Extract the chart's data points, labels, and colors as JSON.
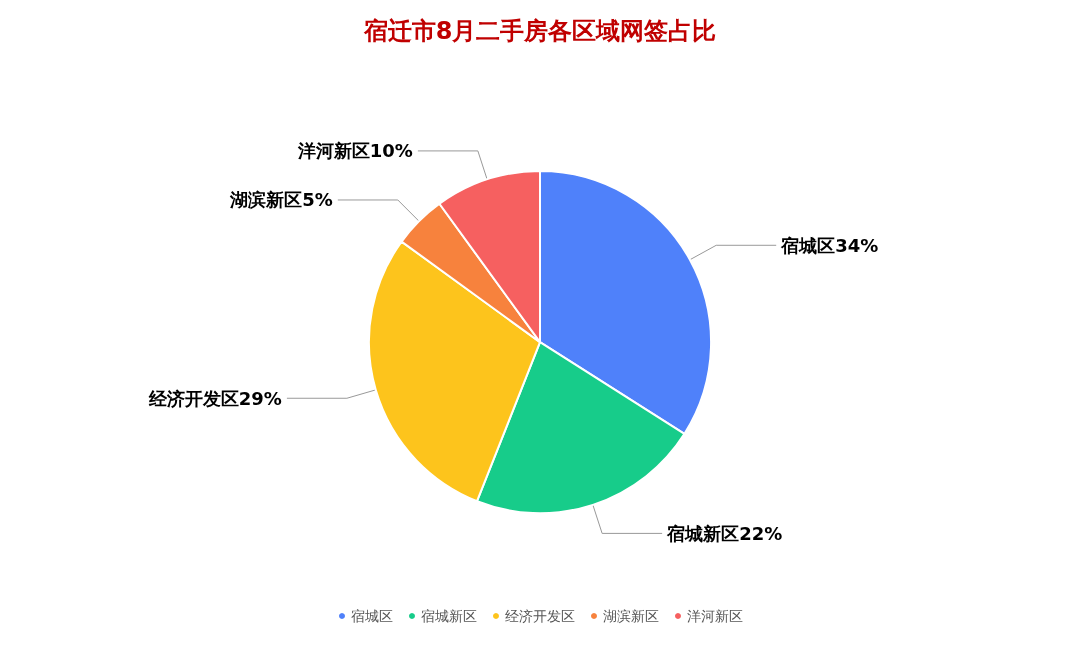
{
  "chart_data": {
    "type": "pie",
    "title": "宿迁市8月二手房各区域网签占比",
    "categories": [
      "宿城区",
      "宿城新区",
      "经济开发区",
      "湖滨新区",
      "洋河新区"
    ],
    "values": [
      34,
      22,
      29,
      5,
      10
    ],
    "colors": [
      "#4f81fa",
      "#17cc8a",
      "#fdc41c",
      "#f7823d",
      "#f66060"
    ],
    "value_labels": [
      "宿城区34%",
      "宿城新区22%",
      "经济开发区29%",
      "湖滨新区5%",
      "洋河新区10%"
    ],
    "legend": "bottom"
  }
}
